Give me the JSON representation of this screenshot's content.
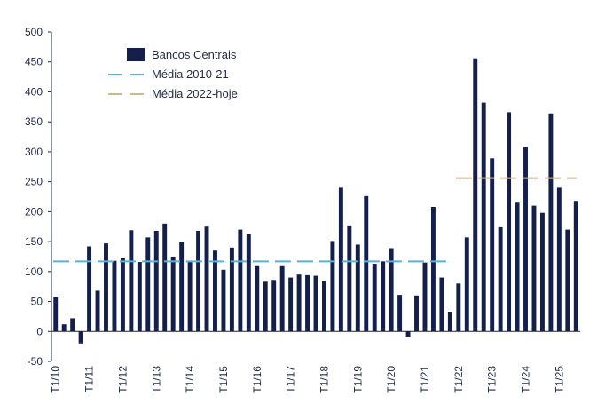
{
  "colors": {
    "bar": "#14204b",
    "avg1": "#58b3d6",
    "avg2": "#cdb98d",
    "axis": "#1f2a44"
  },
  "chart_data": {
    "type": "bar",
    "title": "",
    "xlabel": "",
    "ylabel": "",
    "ylim": [
      -50,
      500
    ],
    "yticks": [
      -50,
      0,
      50,
      100,
      150,
      200,
      250,
      300,
      350,
      400,
      450,
      500
    ],
    "yticks_labels": [
      "-50",
      "0",
      "50",
      "100",
      "150",
      "200",
      "250",
      "300",
      "350",
      "400",
      "450",
      "500"
    ],
    "x_tick_labels": [
      {
        "label": "T1/10",
        "index": 0
      },
      {
        "label": "T1/11",
        "index": 4
      },
      {
        "label": "T1/12",
        "index": 8
      },
      {
        "label": "T1/13",
        "index": 12
      },
      {
        "label": "T1/14",
        "index": 16
      },
      {
        "label": "T1/15",
        "index": 20
      },
      {
        "label": "T1/16",
        "index": 24
      },
      {
        "label": "T1/17",
        "index": 28
      },
      {
        "label": "T1/18",
        "index": 32
      },
      {
        "label": "T1/19",
        "index": 36
      },
      {
        "label": "T1/20",
        "index": 40
      },
      {
        "label": "T1/21",
        "index": 44
      },
      {
        "label": "T1/22",
        "index": 48
      },
      {
        "label": "T1/23",
        "index": 52
      },
      {
        "label": "T1/24",
        "index": 56
      },
      {
        "label": "T1/25",
        "index": 60
      }
    ],
    "series": [
      {
        "name": "Bancos Centrais",
        "values": [
          58,
          12,
          22,
          -20,
          142,
          68,
          147,
          118,
          122,
          169,
          116,
          157,
          168,
          180,
          125,
          149,
          117,
          168,
          175,
          135,
          103,
          140,
          170,
          162,
          109,
          83,
          86,
          109,
          90,
          95,
          94,
          93,
          84,
          151,
          240,
          177,
          145,
          226,
          113,
          117,
          139,
          61,
          -10,
          60,
          115,
          208,
          90,
          33,
          80,
          157,
          456,
          382,
          289,
          174,
          366,
          215,
          308,
          210,
          198,
          364,
          240,
          170,
          218
        ]
      }
    ],
    "reference_lines": [
      {
        "name": "Média 2010-21",
        "value": 117,
        "from_index": 0,
        "to_index": 47
      },
      {
        "name": "Média 2022-hoje",
        "value": 256,
        "from_index": 48,
        "to_index": 62
      }
    ],
    "legend": {
      "position": "top-left",
      "entries": [
        "Bancos Centrais",
        "Média 2010-21",
        "Média 2022-hoje"
      ]
    }
  }
}
